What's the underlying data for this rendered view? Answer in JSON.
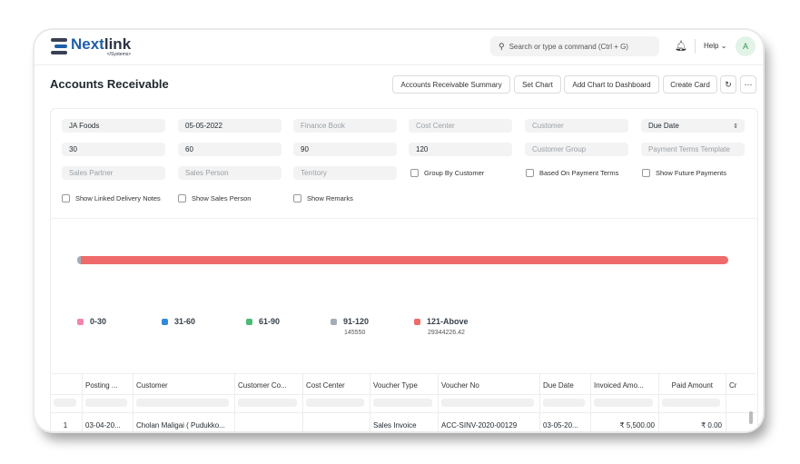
{
  "brand": {
    "name_part1": "Next",
    "name_part2": "link",
    "subtitle": "</Systems>"
  },
  "navbar": {
    "search_placeholder": "Search or type a command (Ctrl + G)",
    "help_label": "Help",
    "avatar_initial": "A"
  },
  "page": {
    "title": "Accounts Receivable"
  },
  "toolbar": {
    "summary": "Accounts Receivable Summary",
    "set_chart": "Set Chart",
    "add_chart": "Add Chart to Dashboard",
    "create_card": "Create Card",
    "refresh_icon": "↻",
    "more_icon": "⋯"
  },
  "filters": {
    "company": "JA Foods",
    "date": "05-05-2022",
    "finance_book": "Finance Book",
    "cost_center": "Cost Center",
    "customer": "Customer",
    "ageing_based_on": "Due Date",
    "range1": "30",
    "range2": "60",
    "range3": "90",
    "range4": "120",
    "customer_group": "Customer Group",
    "payment_terms_template": "Payment Terms Template",
    "sales_partner": "Sales Partner",
    "sales_person": "Sales Person",
    "territory": "Territory",
    "group_by_customer": "Group By Customer",
    "based_on_payment_terms": "Based On Payment Terms",
    "show_future_payments": "Show Future Payments",
    "show_linked_delivery_notes": "Show Linked Delivery Notes",
    "show_sales_person": "Show Sales Person",
    "show_remarks": "Show Remarks"
  },
  "chart_data": {
    "type": "bar",
    "stacked": true,
    "orientation": "horizontal",
    "categories": [
      "0-30",
      "31-60",
      "61-90",
      "91-120",
      "121-Above"
    ],
    "values": [
      0,
      0,
      0,
      145550,
      29344226.42
    ],
    "value_labels": [
      "",
      "",
      "",
      "145550",
      "29344226.42"
    ],
    "colors": [
      "#f683ae",
      "#318ad8",
      "#48bb74",
      "#a3acb8",
      "#ef6b6b"
    ],
    "legend_position": "bottom"
  },
  "table": {
    "columns": [
      "",
      "Posting ...",
      "Customer",
      "Customer Co...",
      "Cost Center",
      "Voucher Type",
      "Voucher No",
      "Due Date",
      "Invoiced Amo...",
      "Paid Amount",
      "Cr"
    ],
    "rows": [
      [
        "1",
        "03-04-20...",
        "Cholan Maligai ( Pudukko...",
        "",
        "",
        "Sales Invoice",
        "ACC-SINV-2020-00129",
        "03-05-20...",
        "₹ 5,500.00",
        "₹ 0.00",
        ""
      ]
    ]
  }
}
